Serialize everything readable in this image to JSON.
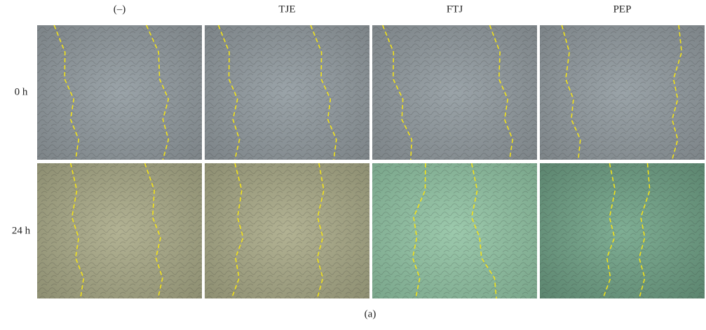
{
  "column_headers": [
    "(–)",
    "TJE",
    "FTJ",
    "PEP"
  ],
  "row_labels": [
    "0 h",
    "24 h"
  ],
  "caption": "(a)"
}
